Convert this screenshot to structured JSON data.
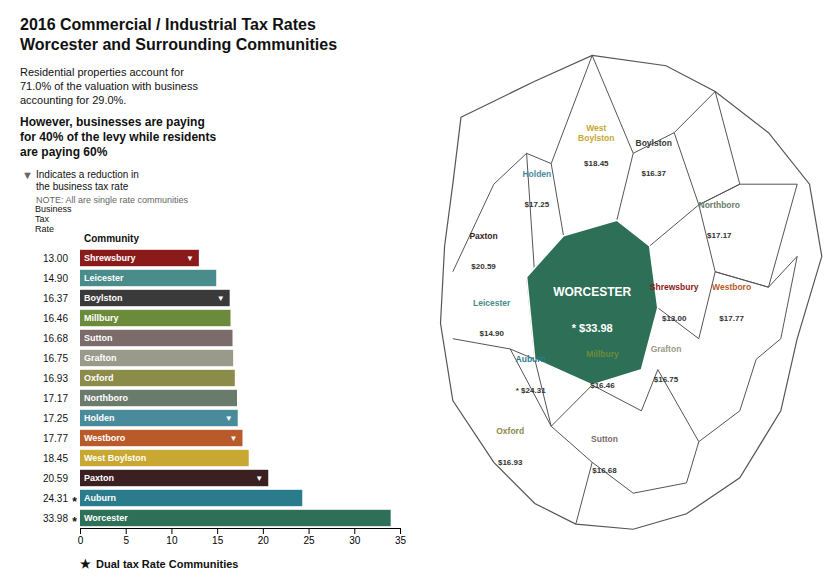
{
  "chart_data": {
    "type": "bar",
    "orientation": "horizontal",
    "title": "2016 Commercial / Industrial Tax Rates\nWorcester and Surrounding Communities",
    "subtitle": [
      "Residential properties account for\n71.0% of the valuation with business\naccounting for 29.0%.",
      "However, businesses are paying\nfor 40% of the levy while residents\nare paying 60%"
    ],
    "categories": [
      "Shrewsbury",
      "Leicester",
      "Boylston",
      "Millbury",
      "Sutton",
      "Grafton",
      "Oxford",
      "Northboro",
      "Holden",
      "Westboro",
      "West Boylston",
      "Paxton",
      "Auburn",
      "Worcester"
    ],
    "values": [
      13.0,
      14.9,
      16.37,
      16.46,
      16.68,
      16.75,
      16.93,
      17.17,
      17.25,
      17.77,
      18.45,
      20.59,
      24.31,
      33.98
    ],
    "value_labels": [
      "13.00",
      "14.90",
      "16.37",
      "16.46",
      "16.68",
      "16.75",
      "16.93",
      "17.17",
      "17.25",
      "17.77",
      "18.45",
      "20.59",
      "24.31",
      "33.98"
    ],
    "colors": [
      "#8B1A1A",
      "#4A8B8B",
      "#3A3A3A",
      "#6B8B3A",
      "#7B6B6B",
      "#9A9A8A",
      "#8B8B4A",
      "#6B7B6B",
      "#4A8B9B",
      "#B85A2A",
      "#C8A832",
      "#3A2020",
      "#2A7B8B",
      "#2E7057"
    ],
    "data_labels": true,
    "xlim": [
      0,
      35
    ],
    "xticks": [
      0,
      5,
      10,
      15,
      20,
      25,
      30,
      35
    ],
    "grid": false,
    "column_headers": [
      "Business\nTax\nRate",
      "Community"
    ],
    "reduction": {
      "flags": [
        true,
        false,
        true,
        false,
        false,
        false,
        false,
        false,
        true,
        true,
        false,
        true,
        false,
        false
      ],
      "symbol": "▼",
      "note": "Indicates a reduction in\nthe business tax rate",
      "note_small": "NOTE: All are single rate communities"
    },
    "dual": {
      "flags": [
        false,
        false,
        false,
        false,
        false,
        false,
        false,
        false,
        false,
        false,
        false,
        false,
        true,
        true
      ],
      "symbol": "*",
      "note_symbol": "★",
      "note": "Dual tax Rate Communities"
    },
    "map": {
      "center": {
        "name": "WORCESTER",
        "price": "* $33.98",
        "color": "#2E7057"
      },
      "labels": [
        {
          "name": "Holden",
          "color": "#4A8B9B",
          "price": "$17.25"
        },
        {
          "name": "West\nBoylston",
          "color": "#C8A832",
          "price": "$18.45"
        },
        {
          "name": "Boylston",
          "color": "#3A3A3A",
          "price": "$16.37"
        },
        {
          "name": "Northboro",
          "color": "#6B7B6B",
          "price": "$17.17"
        },
        {
          "name": "Paxton",
          "color": "#3A2020",
          "price": "$20.59"
        },
        {
          "name": "Shrewsbury",
          "color": "#8B1A1A",
          "price": "$13.00"
        },
        {
          "name": "Westboro",
          "color": "#B85A2A",
          "price": "$17.77"
        },
        {
          "name": "Leicester",
          "color": "#4A8B8B",
          "price": "$14.90"
        },
        {
          "name": "Auburn",
          "color": "#2A7B8B",
          "price": "* $24.31"
        },
        {
          "name": "Millbury",
          "color": "#6B8B3A",
          "price": "$16.46"
        },
        {
          "name": "Grafton",
          "color": "#9A9A8A",
          "price": "$16.75"
        },
        {
          "name": "Oxford",
          "color": "#8B8B4A",
          "price": "$16.93"
        },
        {
          "name": "Sutton",
          "color": "#7B6B6B",
          "price": "$16.68"
        }
      ]
    }
  }
}
